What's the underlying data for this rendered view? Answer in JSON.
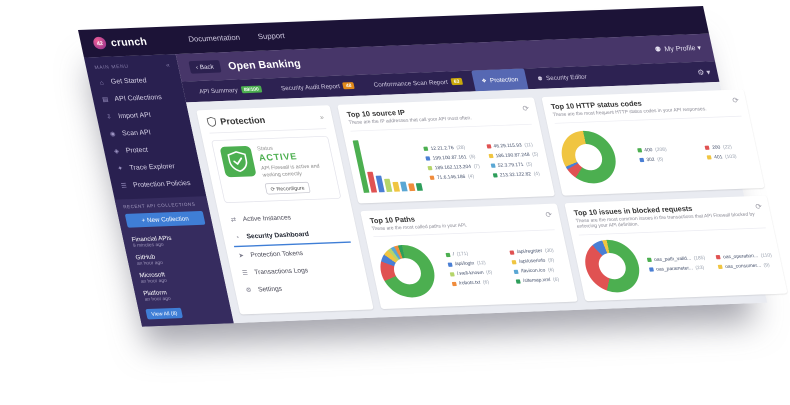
{
  "brand": {
    "name": "crunch",
    "mark": "42"
  },
  "topnav": {
    "items": [
      "Documentation",
      "Support"
    ]
  },
  "sidebar": {
    "section_label": "MAIN MENU",
    "items": [
      {
        "label": "Get Started",
        "icon": "home-icon",
        "glyph": "⌂"
      },
      {
        "label": "API Collections",
        "icon": "collections-icon",
        "glyph": "▤"
      },
      {
        "label": "Import API",
        "icon": "import-icon",
        "glyph": "⇩"
      },
      {
        "label": "Scan API",
        "icon": "scan-icon",
        "glyph": "◉"
      },
      {
        "label": "Protect",
        "icon": "protect-icon",
        "glyph": "◈"
      },
      {
        "label": "Trace Explorer",
        "icon": "trace-icon",
        "glyph": "✦"
      },
      {
        "label": "Protection Policies",
        "icon": "policies-icon",
        "glyph": "☰"
      }
    ],
    "collections": {
      "label": "RECENT API COLLECTIONS",
      "new_button": "+ New Collection",
      "items": [
        {
          "name": "Financial APIs",
          "time": "9 minutes ago"
        },
        {
          "name": "GitHub",
          "time": "an hour ago"
        },
        {
          "name": "Microsoft",
          "time": "an hour ago"
        },
        {
          "name": "Platform",
          "time": "an hour ago"
        }
      ],
      "view_all": "View All (8)"
    }
  },
  "header": {
    "back": "‹ Back",
    "title": "Open Banking",
    "profile": "My Profile ▾",
    "gear": "⚙ ▾"
  },
  "tabs": [
    {
      "label": "API Summary",
      "badge": "89/100",
      "badge_color": "#4caf50",
      "active": false
    },
    {
      "label": "Security Audit Report",
      "badge": "48",
      "badge_color": "#e0891a",
      "active": false
    },
    {
      "label": "Conformance Scan Report",
      "badge": "63",
      "badge_color": "#c9a80a",
      "active": false
    },
    {
      "label": "Protection",
      "glyph": "❖",
      "icon": "shield-icon",
      "active": true
    },
    {
      "label": "Security Editor",
      "glyph": "⚉",
      "icon": "person-icon",
      "active": false
    }
  ],
  "protection_panel": {
    "title": "Protection",
    "status_label": "Status",
    "status_value": "ACTIVE",
    "status_desc": "API Firewall is active and working correctly",
    "reconfigure": "⟳ Reconfigure",
    "menu": [
      {
        "label": "Active Instances",
        "glyph": "⇄",
        "icon": "instances-icon",
        "active": false
      },
      {
        "label": "Security Dashboard",
        "glyph": "◔",
        "icon": "dashboard-icon",
        "active": true
      },
      {
        "label": "Protection Tokens",
        "glyph": "➤",
        "icon": "tokens-icon",
        "active": false
      },
      {
        "label": "Transactions Logs",
        "glyph": "☰",
        "icon": "logs-icon",
        "active": false
      },
      {
        "label": "Settings",
        "glyph": "⚙",
        "icon": "settings-icon",
        "active": false
      }
    ]
  },
  "chart_data": [
    {
      "type": "bar",
      "title": "Top 10 source IP",
      "subtitle": "These are the IP addresses that call your API most often.",
      "series": [
        {
          "label": "12.21.2.76",
          "value": 28,
          "color": "#4caf50"
        },
        {
          "label": "46.29.115.93",
          "value": 11,
          "color": "#e05252"
        },
        {
          "label": "199.100.87.161",
          "value": 9,
          "color": "#4a7fd4"
        },
        {
          "label": "189.162.113.204",
          "value": 7,
          "color": "#b5d56a"
        },
        {
          "label": "186.190.87.248",
          "value": 5,
          "color": "#f0c541"
        },
        {
          "label": "52.3.79.171",
          "value": 5,
          "color": "#5aa7d4"
        },
        {
          "label": "71.6.146.186",
          "value": 4,
          "color": "#f08c3c"
        },
        {
          "label": "213.32.122.82",
          "value": 4,
          "color": "#2e9e5b"
        }
      ],
      "legend_columns": [
        [
          0,
          2,
          3,
          6
        ],
        [
          1,
          4,
          5,
          7
        ]
      ]
    },
    {
      "type": "donut",
      "title": "Top 10 HTTP status codes",
      "subtitle": "These are the most frequent HTTP status codes in your API responses.",
      "series": [
        {
          "label": "400",
          "value": 208,
          "color": "#4caf50"
        },
        {
          "label": "200",
          "value": 22,
          "color": "#e05252"
        },
        {
          "label": "302",
          "value": 6,
          "color": "#4a7fd4"
        },
        {
          "label": "401",
          "value": 103,
          "color": "#f0c541"
        }
      ],
      "legend_columns": [
        [
          0,
          2
        ],
        [
          1,
          3
        ]
      ]
    },
    {
      "type": "donut",
      "title": "Top 10 Paths",
      "subtitle": "These are the most called paths in your API.",
      "series": [
        {
          "label": "/",
          "value": 171,
          "color": "#4caf50"
        },
        {
          "label": "/api/register",
          "value": 30,
          "color": "#e05252"
        },
        {
          "label": "/api/login",
          "value": 12,
          "color": "#4a7fd4"
        },
        {
          "label": "/api/userinfo",
          "value": 9,
          "color": "#f0c541"
        },
        {
          "label": "/.well-known",
          "value": 6,
          "color": "#b5d56a"
        },
        {
          "label": "/favicon.ico",
          "value": 6,
          "color": "#5aa7d4"
        },
        {
          "label": "/robots.txt",
          "value": 6,
          "color": "#f08c3c"
        },
        {
          "label": "/sitemap.xml",
          "value": 6,
          "color": "#2e9e5b"
        }
      ],
      "legend_columns": [
        [
          0,
          2,
          4,
          6
        ],
        [
          1,
          3,
          5,
          7
        ]
      ]
    },
    {
      "type": "donut",
      "title": "Top 10 issues in blocked requests",
      "subtitle": "These are the most common issues in the transactions that API Firewall blocked by enforcing your API definition.",
      "series": [
        {
          "label": "oas_path_valid...",
          "value": 185,
          "color": "#4caf50"
        },
        {
          "label": "oas_operation...",
          "value": 110,
          "color": "#e05252"
        },
        {
          "label": "oas_parameter...",
          "value": 23,
          "color": "#4a7fd4"
        },
        {
          "label": "oas_consumer...",
          "value": 9,
          "color": "#f0c541"
        }
      ],
      "legend_columns": [
        [
          0,
          2
        ],
        [
          1,
          3
        ]
      ]
    }
  ],
  "icons": {
    "refresh": "⟳",
    "collapse": "«",
    "forward": "»",
    "profile_person": "⚉"
  }
}
